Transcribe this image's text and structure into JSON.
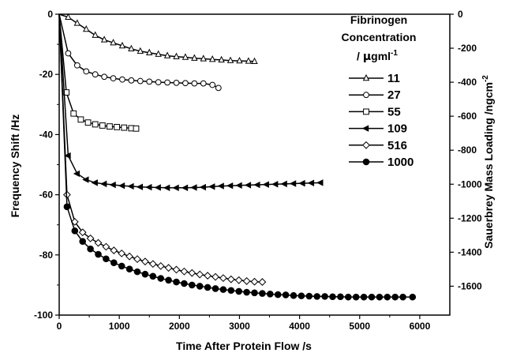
{
  "chart_data": {
    "type": "line",
    "xlabel": "Time After Protein Flow /s",
    "ylabel": "Frequency Shift /Hz",
    "y2label_main": "Sauerbrey Mass Loading /ngcm",
    "y2label_exp": "-2",
    "xlim": [
      0,
      6500
    ],
    "ylim": [
      -100,
      0
    ],
    "y2lim": [
      -1770,
      0
    ],
    "x_ticks": [
      0,
      1000,
      2000,
      3000,
      4000,
      5000,
      6000
    ],
    "y_ticks": [
      0,
      -20,
      -40,
      -60,
      -80,
      -100
    ],
    "y2_ticks": [
      0,
      -200,
      -400,
      -600,
      -800,
      -1000,
      -1200,
      -1400,
      -1600
    ],
    "legend_title_lines": [
      "Fibrinogen",
      "Concentration"
    ],
    "legend_unit_prefix": "/ ",
    "legend_unit_mu": "μ",
    "legend_unit_rest": "gml",
    "legend_unit_exp": "-1",
    "legend_position": "top-right",
    "series": [
      {
        "name": "11",
        "marker": "triangle-up",
        "x": [
          0,
          150,
          300,
          450,
          600,
          750,
          900,
          1050,
          1200,
          1350,
          1500,
          1650,
          1800,
          1950,
          2100,
          2250,
          2400,
          2550,
          2700,
          2850,
          3000,
          3150,
          3250
        ],
        "y": [
          0,
          -1,
          -3,
          -5,
          -7,
          -8.5,
          -9.5,
          -10.5,
          -11.5,
          -12.3,
          -12.8,
          -13.3,
          -13.8,
          -14.1,
          -14.3,
          -14.6,
          -14.8,
          -15,
          -15.2,
          -15.4,
          -15.5,
          -15.6,
          -15.7
        ]
      },
      {
        "name": "27",
        "marker": "circle-open",
        "x": [
          0,
          150,
          300,
          450,
          600,
          750,
          900,
          1050,
          1200,
          1350,
          1500,
          1650,
          1800,
          1950,
          2100,
          2250,
          2400,
          2550,
          2650
        ],
        "y": [
          0,
          -13,
          -17,
          -19,
          -20,
          -20.8,
          -21.3,
          -21.7,
          -22,
          -22.2,
          -22.4,
          -22.6,
          -22.7,
          -22.8,
          -22.9,
          -23,
          -23,
          -23.5,
          -24.5
        ]
      },
      {
        "name": "55",
        "marker": "square-open",
        "x": [
          0,
          120,
          240,
          360,
          480,
          600,
          720,
          840,
          960,
          1080,
          1200,
          1280
        ],
        "y": [
          0,
          -26,
          -33,
          -35,
          -36,
          -36.6,
          -37,
          -37.3,
          -37.5,
          -37.7,
          -37.9,
          -38
        ]
      },
      {
        "name": "109",
        "marker": "triangle-left",
        "x": [
          0,
          150,
          300,
          450,
          600,
          750,
          900,
          1050,
          1200,
          1350,
          1500,
          1650,
          1800,
          1950,
          2100,
          2250,
          2400,
          2550,
          2700,
          2850,
          3000,
          3150,
          3300,
          3450,
          3600,
          3750,
          3900,
          4050,
          4200,
          4350
        ],
        "y": [
          0,
          -47,
          -53,
          -55,
          -56,
          -56.4,
          -56.7,
          -57,
          -57.2,
          -57.4,
          -57.5,
          -57.6,
          -57.7,
          -57.7,
          -57.7,
          -57.6,
          -57.5,
          -57.3,
          -57.1,
          -57,
          -56.9,
          -56.8,
          -56.7,
          -56.6,
          -56.5,
          -56.4,
          -56.3,
          -56.2,
          -56.1,
          -56
        ]
      },
      {
        "name": "516",
        "marker": "diamond-open",
        "x": [
          0,
          130,
          260,
          390,
          520,
          650,
          780,
          910,
          1040,
          1170,
          1300,
          1430,
          1560,
          1690,
          1820,
          1950,
          2080,
          2210,
          2340,
          2470,
          2600,
          2730,
          2860,
          2990,
          3120,
          3250,
          3380
        ],
        "y": [
          0,
          -60,
          -69,
          -72.5,
          -74.5,
          -76,
          -77.3,
          -78.5,
          -79.5,
          -80.5,
          -81.4,
          -82.2,
          -83,
          -83.7,
          -84.3,
          -84.9,
          -85.5,
          -86,
          -86.5,
          -86.9,
          -87.3,
          -87.7,
          -88.1,
          -88.4,
          -88.7,
          -88.9,
          -89
        ]
      },
      {
        "name": "1000",
        "marker": "circle-filled",
        "x": [
          0,
          130,
          260,
          390,
          520,
          650,
          780,
          910,
          1040,
          1170,
          1300,
          1430,
          1560,
          1690,
          1820,
          1950,
          2080,
          2210,
          2340,
          2470,
          2600,
          2730,
          2860,
          2990,
          3120,
          3250,
          3380,
          3510,
          3640,
          3770,
          3900,
          4030,
          4160,
          4290,
          4420,
          4550,
          4680,
          4810,
          4940,
          5070,
          5200,
          5330,
          5460,
          5590,
          5720,
          5880
        ],
        "y": [
          0,
          -64,
          -72,
          -75.5,
          -78,
          -79.8,
          -81.3,
          -82.6,
          -83.7,
          -84.7,
          -85.6,
          -86.4,
          -87.1,
          -87.8,
          -88.4,
          -89,
          -89.5,
          -90,
          -90.4,
          -90.8,
          -91.2,
          -91.5,
          -91.8,
          -92.1,
          -92.4,
          -92.6,
          -92.8,
          -93,
          -93.2,
          -93.3,
          -93.5,
          -93.6,
          -93.7,
          -93.8,
          -93.8,
          -93.9,
          -93.9,
          -94,
          -94,
          -94,
          -94,
          -94,
          -94,
          -94,
          -94,
          -94
        ]
      }
    ]
  }
}
